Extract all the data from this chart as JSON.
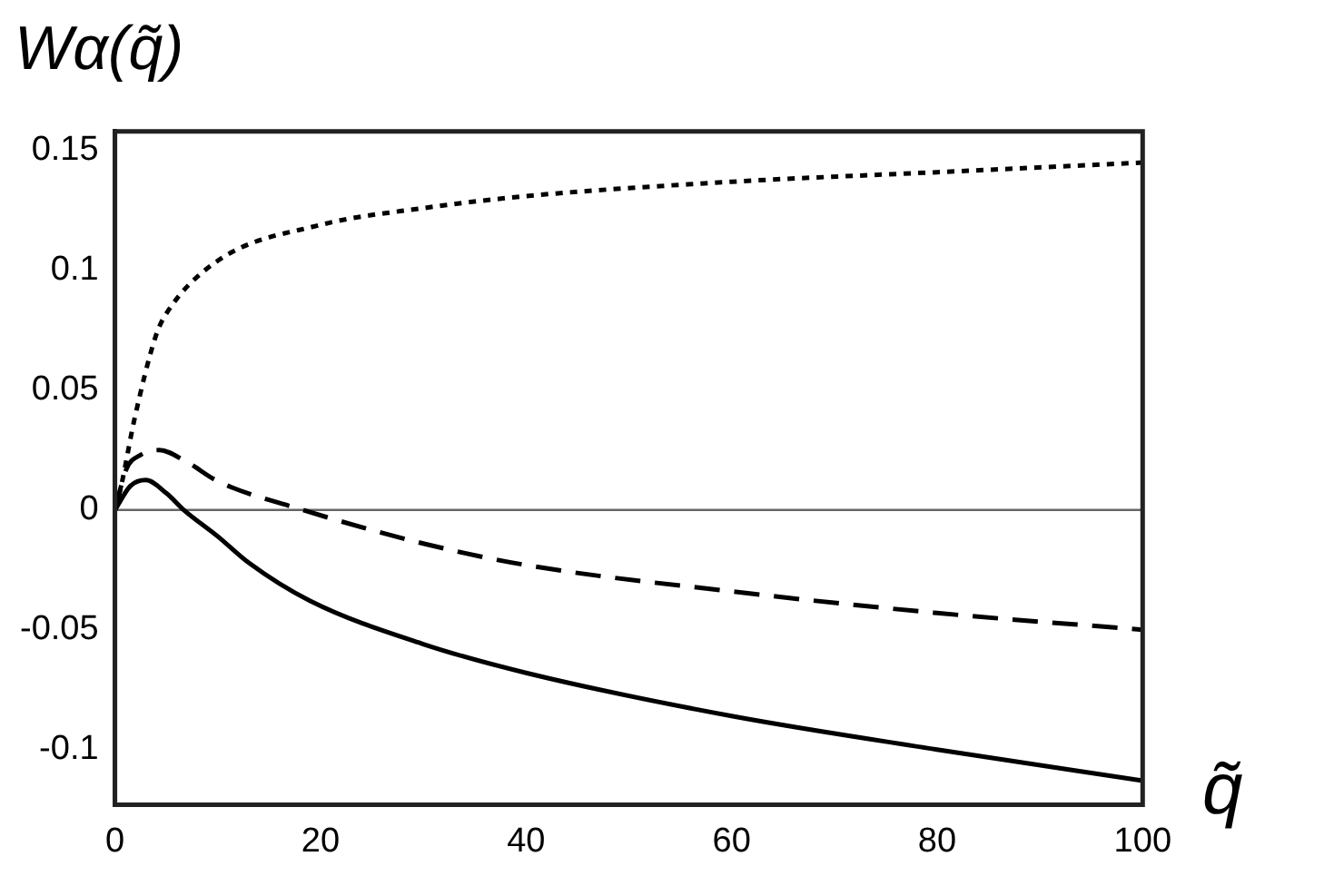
{
  "chart_data": {
    "type": "line",
    "xlabel": "q̃",
    "ylabel": "Wα(q̃)",
    "xlim": [
      0,
      100
    ],
    "xticks": [
      0,
      20,
      40,
      60,
      80,
      100
    ],
    "ylim": [
      -0.123,
      0.158
    ],
    "yticks": [
      -0.1,
      -0.05,
      0,
      0.05,
      0.1,
      0.15
    ],
    "grid": false,
    "legend": false,
    "marker": "none",
    "series": [
      {
        "color": "#000000",
        "line_style": "dotted",
        "x": [
          0,
          0.6,
          1.9,
          4,
          5,
          10,
          20,
          30,
          40,
          60,
          80,
          100
        ],
        "values": [
          0,
          0.01,
          0.038,
          0.073,
          0.082,
          0.104,
          0.119,
          0.126,
          0.131,
          0.137,
          0.141,
          0.145
        ]
      },
      {
        "color": "#000000",
        "line_style": "dashed",
        "x": [
          0,
          1.1,
          2.5,
          4.3,
          7,
          10,
          18.3,
          30,
          40,
          60,
          80,
          100
        ],
        "values": [
          0,
          0.017,
          0.023,
          0.025,
          0.02,
          0.012,
          0,
          -0.014,
          -0.023,
          -0.034,
          -0.043,
          -0.05
        ]
      },
      {
        "color": "#000000",
        "line_style": "solid",
        "x": [
          0,
          1.5,
          3,
          5,
          6.7,
          10,
          13,
          19,
          30,
          40,
          60,
          80,
          100
        ],
        "values": [
          0,
          0.01,
          0.0125,
          0.007,
          0,
          -0.011,
          -0.022,
          -0.038,
          -0.056,
          -0.068,
          -0.086,
          -0.1,
          -0.113
        ]
      }
    ],
    "ref_lines": [
      {
        "axis": "y",
        "value": 0,
        "color": "#666666",
        "line_style": "solid"
      }
    ]
  }
}
